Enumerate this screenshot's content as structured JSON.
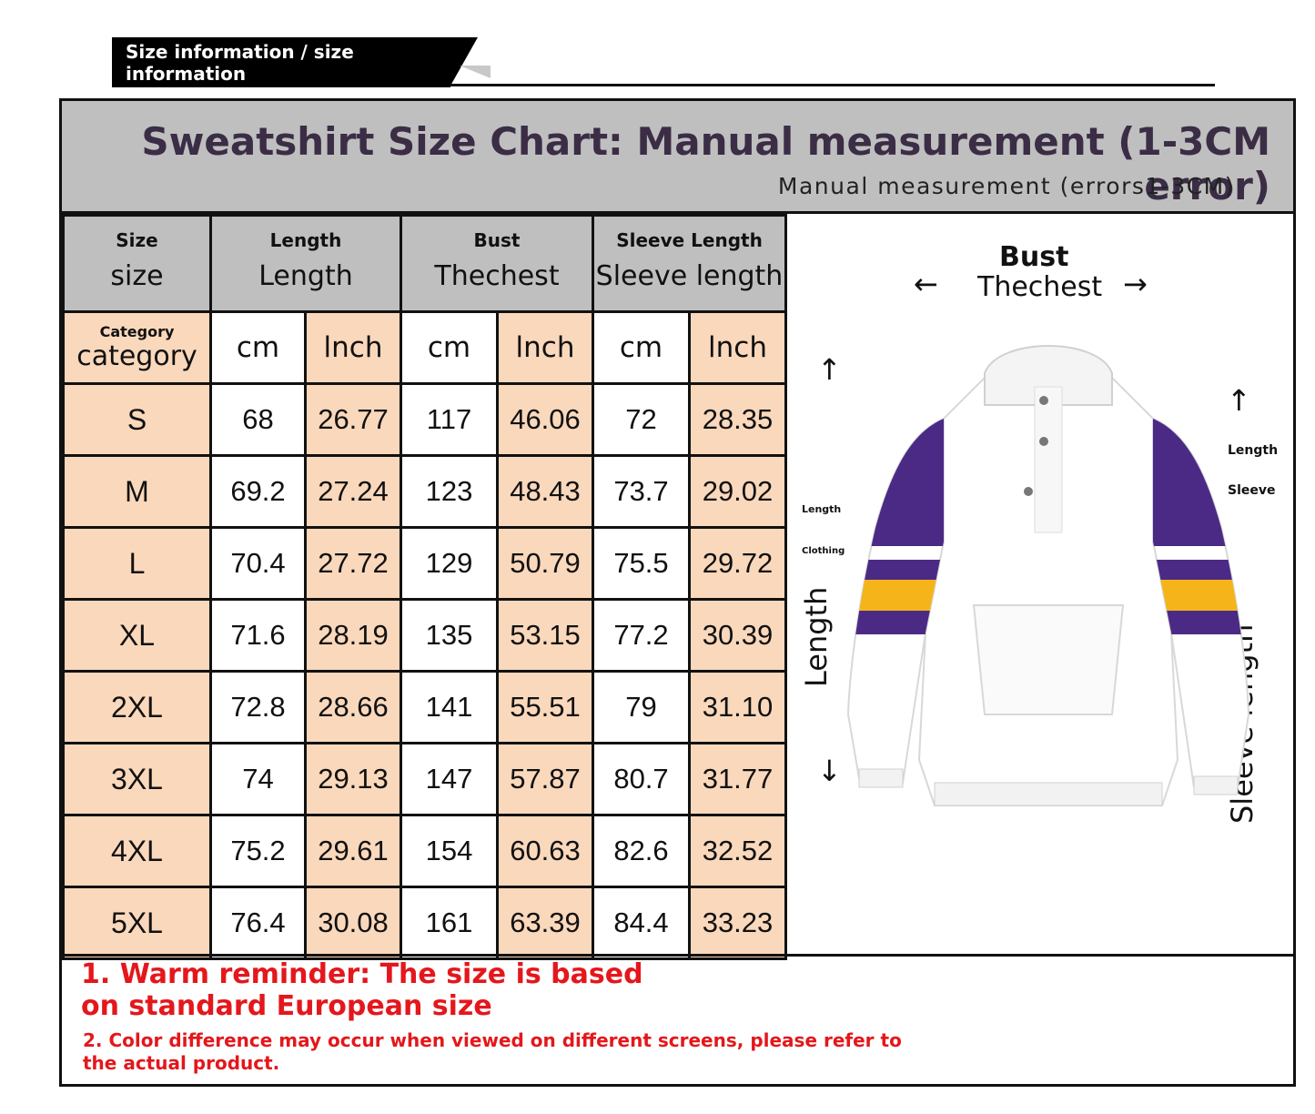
{
  "header": {
    "tab_label": "Size information / size information"
  },
  "title_band": {
    "title": "Sweatshirt Size Chart: Manual measurement (1-3CM error)",
    "subtitle": "Manual  measurement (errors1-3CM)"
  },
  "table": {
    "headers": [
      {
        "top": "Size",
        "bottom": "size"
      },
      {
        "top": "Length",
        "bottom": "Length"
      },
      {
        "top": "Bust",
        "bottom": "Thechest"
      },
      {
        "top": "Sleeve Length",
        "bottom": "Sleeve length"
      }
    ],
    "category": {
      "top": "Category",
      "bottom": "category"
    },
    "unit_cm": "cm",
    "unit_inch": "lnch",
    "rows": [
      {
        "size": "S",
        "len_cm": "68",
        "len_in": "26.77",
        "bust_cm": "117",
        "bust_in": "46.06",
        "sleeve_cm": "72",
        "sleeve_in": "28.35"
      },
      {
        "size": "M",
        "len_cm": "69.2",
        "len_in": "27.24",
        "bust_cm": "123",
        "bust_in": "48.43",
        "sleeve_cm": "73.7",
        "sleeve_in": "29.02"
      },
      {
        "size": "L",
        "len_cm": "70.4",
        "len_in": "27.72",
        "bust_cm": "129",
        "bust_in": "50.79",
        "sleeve_cm": "75.5",
        "sleeve_in": "29.72"
      },
      {
        "size": "XL",
        "len_cm": "71.6",
        "len_in": "28.19",
        "bust_cm": "135",
        "bust_in": "53.15",
        "sleeve_cm": "77.2",
        "sleeve_in": "30.39"
      },
      {
        "size": "2XL",
        "len_cm": "72.8",
        "len_in": "28.66",
        "bust_cm": "141",
        "bust_in": "55.51",
        "sleeve_cm": "79",
        "sleeve_in": "31.10"
      },
      {
        "size": "3XL",
        "len_cm": "74",
        "len_in": "29.13",
        "bust_cm": "147",
        "bust_in": "57.87",
        "sleeve_cm": "80.7",
        "sleeve_in": "31.77"
      },
      {
        "size": "4XL",
        "len_cm": "75.2",
        "len_in": "29.61",
        "bust_cm": "154",
        "bust_in": "60.63",
        "sleeve_cm": "82.6",
        "sleeve_in": "32.52"
      },
      {
        "size": "5XL",
        "len_cm": "76.4",
        "len_in": "30.08",
        "bust_cm": "161",
        "bust_in": "63.39",
        "sleeve_cm": "84.4",
        "sleeve_in": "33.23"
      }
    ]
  },
  "illustration": {
    "bust_label": "Bust",
    "bust_sublabel": "Thechest",
    "length_label": "Length",
    "clothing_label": "Clothing",
    "length_vertical": "Length",
    "sleeve_length_label": "Length",
    "sleeve_label": "Sleeve",
    "sleeve_vertical": "Sleeve length",
    "arrow_left": "←",
    "arrow_right": "→",
    "arrow_up": "↑",
    "arrow_down": "↓",
    "jacket_colors": {
      "body": "#ffffff",
      "purple": "#4b2a86",
      "gold": "#f5b41a"
    }
  },
  "notes": {
    "note1": "1. Warm reminder: The size is based on standard European size",
    "note2": "2. Color difference may occur when viewed on different screens, please refer to the actual product."
  },
  "colors": {
    "peach": "#fad8bc",
    "grey": "#bfbfbf",
    "red": "#e4171c",
    "title": "#3b2d45"
  }
}
